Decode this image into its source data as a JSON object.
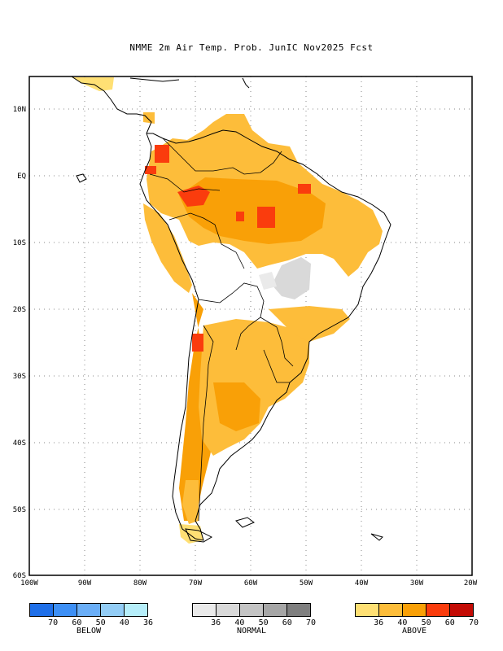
{
  "title": "NMME 2m Air Temp. Prob. JunIC  Nov2025 Fcst",
  "axes": {
    "lat_labels": [
      "10N",
      "EQ",
      "10S",
      "20S",
      "30S",
      "40S",
      "50S",
      "60S"
    ],
    "lon_labels": [
      "100W",
      "90W",
      "80W",
      "70W",
      "60W",
      "50W",
      "40W",
      "30W",
      "20W"
    ]
  },
  "legend": {
    "below": {
      "caption": "BELOW",
      "ticks": [
        "70",
        "60",
        "50",
        "40",
        "36"
      ],
      "colors": [
        "#1f6fe8",
        "#3d8ff5",
        "#6aaef7",
        "#93cdf6",
        "#b6eefa"
      ]
    },
    "normal": {
      "caption": "NORMAL",
      "ticks": [
        "36",
        "40",
        "50",
        "60",
        "70"
      ],
      "colors": [
        "#eaeaea",
        "#d9d9d9",
        "#c4c4c4",
        "#a6a6a6",
        "#7f7f7f"
      ]
    },
    "above": {
      "caption": "ABOVE",
      "ticks": [
        "36",
        "40",
        "50",
        "60",
        "70"
      ],
      "colors": [
        "#ffe074",
        "#fdbd3a",
        "#f9a007",
        "#fa3c0d",
        "#c30b05"
      ]
    }
  }
}
